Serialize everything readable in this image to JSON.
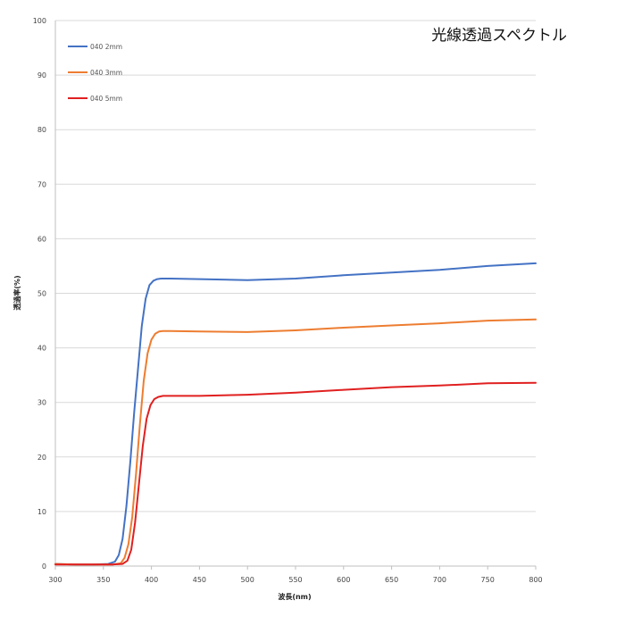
{
  "chart_data": {
    "type": "line",
    "title": "光線透過スペクトル",
    "xlabel": "波長(nm)",
    "ylabel": "透過率(%)",
    "xlim": [
      300,
      800
    ],
    "ylim": [
      0,
      100
    ],
    "x_ticks": [
      300,
      350,
      400,
      450,
      500,
      550,
      600,
      650,
      700,
      750,
      800
    ],
    "y_ticks": [
      0,
      10,
      20,
      30,
      40,
      50,
      60,
      70,
      80,
      90,
      100
    ],
    "grid": "horizontal",
    "legend_position": "top-left",
    "series": [
      {
        "name": "040 2mm",
        "color": "#4472C4",
        "x": [
          300,
          320,
          340,
          355,
          362,
          366,
          370,
          374,
          378,
          382,
          386,
          390,
          394,
          398,
          402,
          406,
          410,
          420,
          450,
          500,
          550,
          600,
          650,
          700,
          750,
          800
        ],
        "y": [
          0.4,
          0.3,
          0.3,
          0.4,
          0.8,
          2,
          5,
          11,
          19,
          28,
          36,
          44,
          49,
          51.5,
          52.3,
          52.6,
          52.7,
          52.7,
          52.6,
          52.4,
          52.7,
          53.3,
          53.8,
          54.3,
          55,
          55.5
        ]
      },
      {
        "name": "040 3mm",
        "color": "#ED7D31",
        "x": [
          300,
          320,
          340,
          360,
          368,
          372,
          376,
          380,
          384,
          388,
          392,
          396,
          400,
          404,
          408,
          412,
          420,
          450,
          500,
          550,
          600,
          650,
          700,
          750,
          800
        ],
        "y": [
          0.4,
          0.3,
          0.3,
          0.3,
          0.5,
          1.5,
          4,
          9,
          17,
          26,
          34,
          39,
          41.5,
          42.6,
          43,
          43.1,
          43.1,
          43,
          42.9,
          43.2,
          43.7,
          44.1,
          44.5,
          45,
          45.2
        ]
      },
      {
        "name": "040 5mm",
        "color": "#E02020",
        "x": [
          300,
          320,
          340,
          360,
          370,
          375,
          379,
          383,
          387,
          391,
          395,
          399,
          403,
          407,
          412,
          420,
          450,
          500,
          550,
          600,
          650,
          700,
          750,
          800
        ],
        "y": [
          0.3,
          0.3,
          0.3,
          0.3,
          0.4,
          1,
          3,
          8,
          15,
          22,
          27,
          29.5,
          30.6,
          31,
          31.2,
          31.2,
          31.2,
          31.4,
          31.8,
          32.3,
          32.8,
          33.1,
          33.5,
          33.6
        ]
      }
    ]
  }
}
